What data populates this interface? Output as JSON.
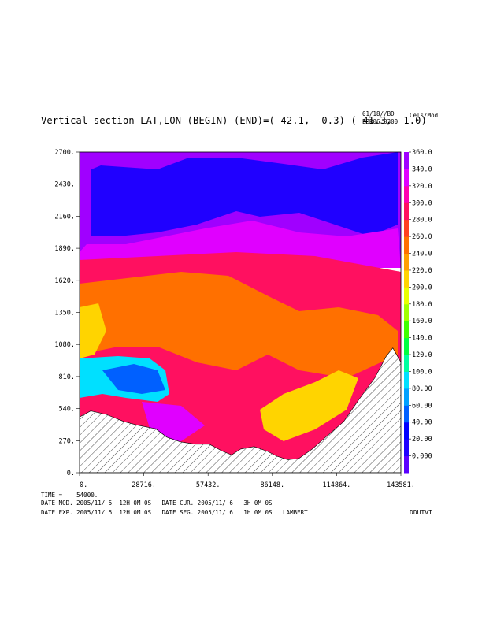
{
  "header": {
    "title": "Vertical section LAT,LON (BEGIN)-(END)=( 42.1, -0.3)-( 41.3,  1.0)",
    "date_line": "01/18//BD",
    "exp_line": "EBR06 0300",
    "unit": "Cels/Mod"
  },
  "chart_data": {
    "type": "heatmap",
    "xticks": [
      "0.",
      "28716.",
      "57432.",
      "86148.",
      "114864.",
      "143581."
    ],
    "yticks": [
      "0.",
      "270.",
      "540.",
      "810.",
      "1080.",
      "1350.",
      "1620.",
      "1890.",
      "2160.",
      "2430.",
      "2700."
    ],
    "xlim": [
      0,
      143581
    ],
    "ylim": [
      0,
      2700
    ],
    "colorbar": {
      "labels": [
        "0.000",
        "20.00",
        "40.00",
        "60.00",
        "80.00",
        "100.0",
        "120.0",
        "140.0",
        "160.0",
        "180.0",
        "200.0",
        "220.0",
        "240.0",
        "260.0",
        "280.0",
        "300.0",
        "320.0",
        "340.0",
        "360.0"
      ],
      "colors": [
        "#5a00ff",
        "#2000ff",
        "#0000ff",
        "#0060ff",
        "#00a0ff",
        "#00e0ff",
        "#00ffa0",
        "#00ff40",
        "#40ff00",
        "#a0ff00",
        "#e8ff00",
        "#ffd400",
        "#ffa000",
        "#ff7000",
        "#ff4020",
        "#ff1060",
        "#ff00b0",
        "#e000ff",
        "#a000ff"
      ],
      "range": [
        0,
        360
      ]
    },
    "regions": [
      {
        "level": 360,
        "label": "violet top layer"
      },
      {
        "level": 20,
        "label": "blue upper band"
      },
      {
        "level": 300,
        "label": "red-pink mid layer"
      },
      {
        "level": 240,
        "label": "orange layer"
      },
      {
        "level": 220,
        "label": "yellow core"
      },
      {
        "level": 100,
        "label": "cyan-green anomaly"
      }
    ],
    "terrain": [
      [
        0,
        470
      ],
      [
        5000,
        520
      ],
      [
        12000,
        490
      ],
      [
        20000,
        430
      ],
      [
        26000,
        400
      ],
      [
        34000,
        370
      ],
      [
        39000,
        300
      ],
      [
        45000,
        260
      ],
      [
        52000,
        240
      ],
      [
        58000,
        240
      ],
      [
        64000,
        180
      ],
      [
        68000,
        150
      ],
      [
        72000,
        200
      ],
      [
        78000,
        220
      ],
      [
        84000,
        180
      ],
      [
        88000,
        140
      ],
      [
        93000,
        110
      ],
      [
        98000,
        120
      ],
      [
        104000,
        200
      ],
      [
        110000,
        300
      ],
      [
        118000,
        430
      ],
      [
        125000,
        620
      ],
      [
        132000,
        800
      ],
      [
        137000,
        980
      ],
      [
        140000,
        1050
      ],
      [
        143581,
        930
      ]
    ],
    "xlabel": "",
    "ylabel": ""
  },
  "footer": {
    "time_line": "TIME =    54000.",
    "mod_line": "DATE MOD. 2005/11/ 5  12H 0M 0S   DATE CUR. 2005/11/ 6   3H 0M 0S",
    "exp_line": "DATE EXP. 2005/11/ 5  12H 0M 0S   DATE SEG. 2005/11/ 6   1H 0M 0S   LAMBERT",
    "code": "DDUTVT"
  }
}
